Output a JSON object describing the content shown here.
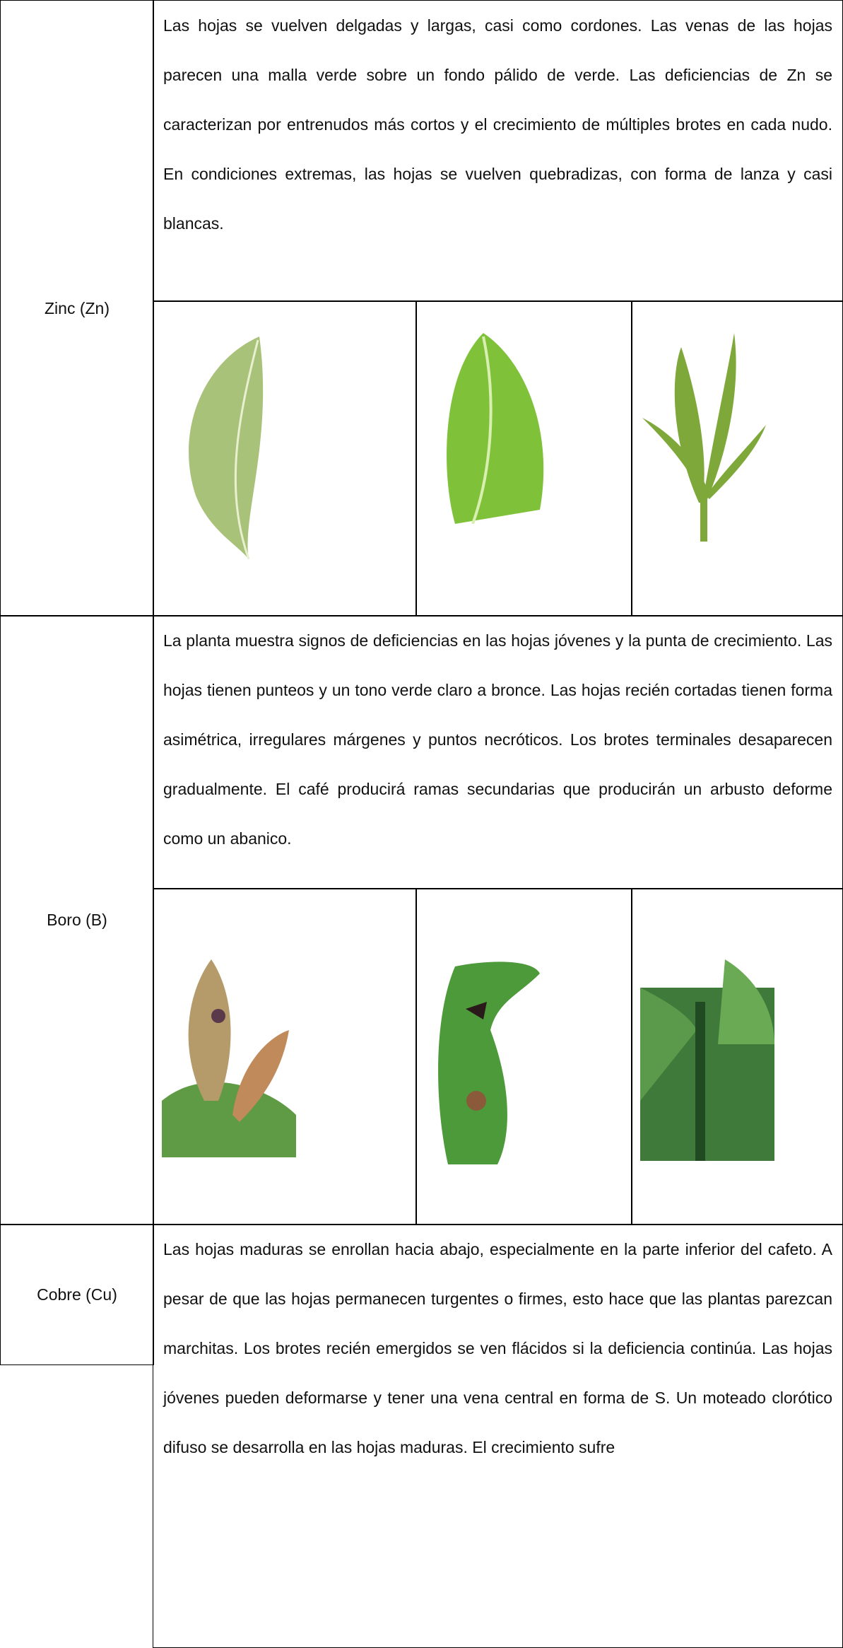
{
  "table": {
    "rows": [
      {
        "label": "Zinc (Zn)",
        "text": "Las hojas se vuelven delgadas y largas, casi como cordones. Las venas de las hojas parecen una malla verde sobre un fondo pálido de verde. Las deficiencias de Zn se caracterizan por entrenudos más cortos y el crecimiento de múltiples brotes en cada nudo. En condiciones extremas, las hojas se vuelven quebradizas, con forma de lanza y casi blancas."
      },
      {
        "label": "Boro (B)",
        "text": "La planta muestra signos de deficiencias en las hojas jóvenes y la punta de crecimiento. Las hojas tienen punteos y un tono verde claro a bronce. Las hojas recién cortadas tienen forma asimétrica, irregulares márgenes y puntos necróticos. Los brotes terminales desaparecen gradualmente. El café producirá ramas secundarias que producirán un arbusto deforme como un abanico."
      },
      {
        "label": "Cobre (Cu)",
        "text": "Las hojas maduras se enrollan hacia abajo, especialmente en la parte inferior del cafeto. A pesar de que las hojas permanecen turgentes o firmes, esto hace que las plantas parezcan marchitas. Los brotes recién emergidos se ven flácidos si la deficiencia continúa. Las hojas jóvenes pueden deformarse y tener una vena central en forma de S. Un moteado clorótico difuso se desarrolla en las hojas maduras. El crecimiento sufre"
      }
    ]
  }
}
